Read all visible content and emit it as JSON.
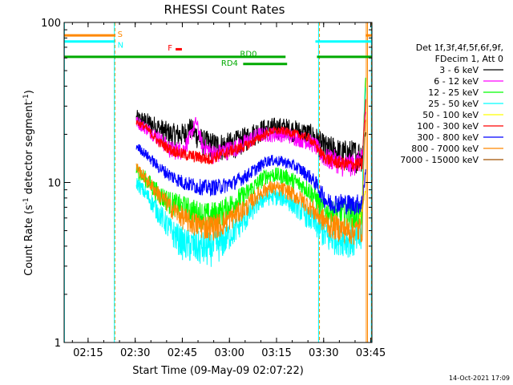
{
  "chart_data": {
    "type": "line",
    "title": "RHESSI Count Rates",
    "xlabel": "Start Time (09-May-09 02:07:22)",
    "ylabel_main": "Count Rate (s",
    "ylabel_sup1": "-1",
    "ylabel_mid": " detector segment",
    "ylabel_sup2": "-1",
    "ylabel_end": ")",
    "x_unit": "minutes after 02:07:22",
    "xlim": [
      0,
      98
    ],
    "ylim": [
      1,
      100
    ],
    "yscale": "log",
    "x_ticks": [
      {
        "x": 7.63,
        "label": "02:15"
      },
      {
        "x": 22.63,
        "label": "02:30"
      },
      {
        "x": 37.63,
        "label": "02:45"
      },
      {
        "x": 52.63,
        "label": "03:00"
      },
      {
        "x": 67.63,
        "label": "03:15"
      },
      {
        "x": 82.63,
        "label": "03:30"
      },
      {
        "x": 97.63,
        "label": "03:45"
      }
    ],
    "y_ticks": [
      {
        "y": 1,
        "label": "1"
      },
      {
        "y": 10,
        "label": "10"
      },
      {
        "y": 100,
        "label": "100"
      }
    ],
    "legend_header": [
      "Det 1f,3f,4f,5f,6f,9f,",
      "FDecim 1, Att 0"
    ],
    "legend_placement": "right",
    "series": [
      {
        "name": "3 - 6 keV",
        "color": "#000000",
        "start": 23,
        "end": 96,
        "base": 26,
        "bump": 4,
        "noise": 3.5,
        "knots": [
          [
            23,
            25
          ],
          [
            26,
            24
          ],
          [
            30,
            22
          ],
          [
            34,
            20
          ],
          [
            38,
            20
          ],
          [
            40,
            22
          ],
          [
            42,
            20
          ],
          [
            44,
            18
          ],
          [
            48,
            17
          ],
          [
            52,
            17
          ],
          [
            56,
            18
          ],
          [
            58,
            19
          ],
          [
            62,
            21
          ],
          [
            66,
            22
          ],
          [
            70,
            22
          ],
          [
            74,
            21
          ],
          [
            78,
            20
          ],
          [
            80,
            19
          ],
          [
            82,
            17
          ],
          [
            84,
            16
          ],
          [
            86,
            16
          ],
          [
            88,
            15
          ],
          [
            92,
            15
          ],
          [
            95,
            15
          ],
          [
            96,
            22
          ]
        ]
      },
      {
        "name": "6 - 12 keV",
        "color": "#ff00ff",
        "start": 23,
        "end": 96,
        "base": 24,
        "bump": 4,
        "noise": 2.2,
        "knots": [
          [
            23,
            24
          ],
          [
            26,
            22
          ],
          [
            30,
            19
          ],
          [
            34,
            16
          ],
          [
            38,
            16
          ],
          [
            40,
            19
          ],
          [
            42,
            24
          ],
          [
            44,
            17
          ],
          [
            46,
            16
          ],
          [
            48,
            15
          ],
          [
            52,
            16
          ],
          [
            56,
            17
          ],
          [
            58,
            18
          ],
          [
            62,
            20
          ],
          [
            66,
            20
          ],
          [
            70,
            20
          ],
          [
            74,
            19
          ],
          [
            78,
            18
          ],
          [
            80,
            17
          ],
          [
            82,
            15
          ],
          [
            84,
            14
          ],
          [
            86,
            14
          ],
          [
            88,
            13
          ],
          [
            92,
            13
          ],
          [
            95,
            14
          ],
          [
            96,
            28
          ]
        ]
      },
      {
        "name": "12 - 25 keV",
        "color": "#00ff00",
        "start": 23,
        "end": 96,
        "base": 9.5,
        "bump": 0,
        "noise": 1.3,
        "knots": [
          [
            23,
            12
          ],
          [
            26,
            10.5
          ],
          [
            30,
            8.5
          ],
          [
            34,
            7.5
          ],
          [
            38,
            7
          ],
          [
            42,
            6.5
          ],
          [
            46,
            6.2
          ],
          [
            50,
            6.5
          ],
          [
            54,
            7.5
          ],
          [
            58,
            8.5
          ],
          [
            62,
            10
          ],
          [
            64,
            11
          ],
          [
            66,
            11.2
          ],
          [
            70,
            11
          ],
          [
            74,
            10
          ],
          [
            78,
            9
          ],
          [
            80,
            8
          ],
          [
            82,
            7
          ],
          [
            84,
            6.5
          ],
          [
            88,
            6.5
          ],
          [
            92,
            6.3
          ],
          [
            95,
            6.5
          ],
          [
            96,
            45
          ]
        ]
      },
      {
        "name": "25 - 50 keV",
        "color": "#00ffff",
        "start": 23,
        "end": 96,
        "base": 10,
        "bump": 0,
        "noise": 1.0,
        "knots": [
          [
            23,
            10
          ],
          [
            26,
            8.5
          ],
          [
            30,
            6.5
          ],
          [
            34,
            5
          ],
          [
            38,
            4.2
          ],
          [
            42,
            4
          ],
          [
            46,
            3.9
          ],
          [
            50,
            4.2
          ],
          [
            54,
            5
          ],
          [
            58,
            6
          ],
          [
            62,
            7.5
          ],
          [
            64,
            8
          ],
          [
            66,
            8.2
          ],
          [
            70,
            8
          ],
          [
            74,
            7
          ],
          [
            78,
            6
          ],
          [
            80,
            5.5
          ],
          [
            82,
            5
          ],
          [
            84,
            4.5
          ],
          [
            88,
            4.5
          ],
          [
            92,
            4.3
          ],
          [
            95,
            4.5
          ],
          [
            96,
            40
          ]
        ]
      },
      {
        "name": "50 - 100 keV",
        "color": "#ffff00",
        "start": 94,
        "end": 96,
        "base": 6,
        "bump": 0,
        "noise": 0.3,
        "knots": [
          [
            94,
            6
          ],
          [
            95,
            7
          ],
          [
            96,
            9
          ]
        ]
      },
      {
        "name": "100 - 300 keV",
        "color": "#ff0000",
        "start": 23,
        "end": 96,
        "base": 24,
        "bump": 0,
        "noise": 1.3,
        "knots": [
          [
            23,
            24
          ],
          [
            26,
            22
          ],
          [
            30,
            18
          ],
          [
            34,
            16
          ],
          [
            38,
            15
          ],
          [
            42,
            14.5
          ],
          [
            46,
            14
          ],
          [
            50,
            15
          ],
          [
            54,
            16
          ],
          [
            58,
            17
          ],
          [
            62,
            19
          ],
          [
            64,
            20
          ],
          [
            66,
            21
          ],
          [
            70,
            21
          ],
          [
            74,
            20
          ],
          [
            78,
            19
          ],
          [
            80,
            17
          ],
          [
            82,
            15
          ],
          [
            84,
            14
          ],
          [
            86,
            13.5
          ],
          [
            90,
            13
          ],
          [
            95,
            13
          ],
          [
            96,
            32
          ]
        ]
      },
      {
        "name": "300 - 800 keV",
        "color": "#0000ff",
        "start": 23,
        "end": 96,
        "base": 17,
        "bump": 0,
        "noise": 1.1,
        "knots": [
          [
            23,
            17
          ],
          [
            26,
            15
          ],
          [
            30,
            12.5
          ],
          [
            34,
            11
          ],
          [
            38,
            10
          ],
          [
            42,
            9.5
          ],
          [
            46,
            9.3
          ],
          [
            50,
            9.5
          ],
          [
            54,
            10
          ],
          [
            58,
            11
          ],
          [
            62,
            12.5
          ],
          [
            64,
            13.5
          ],
          [
            66,
            13.8
          ],
          [
            70,
            13.5
          ],
          [
            74,
            12.5
          ],
          [
            78,
            11
          ],
          [
            80,
            10
          ],
          [
            82,
            8.5
          ],
          [
            84,
            7.5
          ],
          [
            88,
            7.5
          ],
          [
            92,
            7.3
          ],
          [
            95,
            7.5
          ],
          [
            96,
            12
          ]
        ]
      },
      {
        "name": "800 - 7000 keV",
        "color": "#ff8800",
        "start": 23,
        "end": 96,
        "base": 12,
        "bump": 0,
        "noise": 1.0,
        "knots": [
          [
            23,
            12.5
          ],
          [
            26,
            10.5
          ],
          [
            30,
            8.5
          ],
          [
            34,
            7
          ],
          [
            38,
            6
          ],
          [
            42,
            5.5
          ],
          [
            46,
            5.3
          ],
          [
            50,
            5.5
          ],
          [
            54,
            6.2
          ],
          [
            58,
            7
          ],
          [
            62,
            8.5
          ],
          [
            64,
            9
          ],
          [
            66,
            9.3
          ],
          [
            70,
            9
          ],
          [
            74,
            8.2
          ],
          [
            78,
            7.2
          ],
          [
            80,
            6.5
          ],
          [
            82,
            6
          ],
          [
            84,
            5.5
          ],
          [
            88,
            5.2
          ],
          [
            92,
            5
          ],
          [
            95,
            5.2
          ],
          [
            96,
            25
          ]
        ]
      },
      {
        "name": "7000 - 15000 keV",
        "color": "#a05000",
        "start": 96,
        "end": 96,
        "base": 1,
        "bump": 0,
        "noise": 0,
        "knots": []
      }
    ],
    "segments": [
      {
        "label": "S",
        "color": "#ff8800",
        "y": 83,
        "ranges": [
          [
            0,
            16.2
          ],
          [
            96,
            98
          ]
        ],
        "label_x": 17,
        "label_y": 85
      },
      {
        "label": "N",
        "color": "#00ffff",
        "y": 76,
        "ranges": [
          [
            0,
            16.0
          ],
          [
            80,
            98
          ]
        ],
        "label_x": 17,
        "label_y": 73
      },
      {
        "label": "F",
        "color": "#ff0000",
        "y": 68,
        "ranges": [
          [
            35.5,
            37.5
          ]
        ],
        "label_x": 33,
        "label_y": 70
      },
      {
        "label": "RD0",
        "color": "#00aa00",
        "y": 61,
        "ranges": [
          [
            0,
            70.5
          ],
          [
            80.5,
            98
          ]
        ],
        "label_x": 56,
        "label_y": 64
      },
      {
        "label": "RD4",
        "color": "#00aa00",
        "y": 55,
        "ranges": [
          [
            57,
            71
          ]
        ],
        "label_x": 50,
        "label_y": 56
      }
    ],
    "vertical_lines": [
      {
        "x": 16.2,
        "color": "#ff8800",
        "dash": true
      },
      {
        "x": 16.0,
        "color": "#00ffff",
        "dash": false
      },
      {
        "x": 0.1,
        "color": "#00ffff",
        "dash": false
      },
      {
        "x": 81.0,
        "color": "#00ffff",
        "dash": false
      },
      {
        "x": 81.3,
        "color": "#ff8800",
        "dash": true
      },
      {
        "x": 96.2,
        "color": "#ff8800",
        "dash": false
      },
      {
        "x": 96.6,
        "color": "#ff8800",
        "dash": false
      },
      {
        "x": 97.8,
        "color": "#00ffff",
        "dash": false
      },
      {
        "x": 97.9,
        "color": "#ff8800",
        "dash": true
      }
    ],
    "timestamp": "14-Oct-2021 17:09"
  }
}
